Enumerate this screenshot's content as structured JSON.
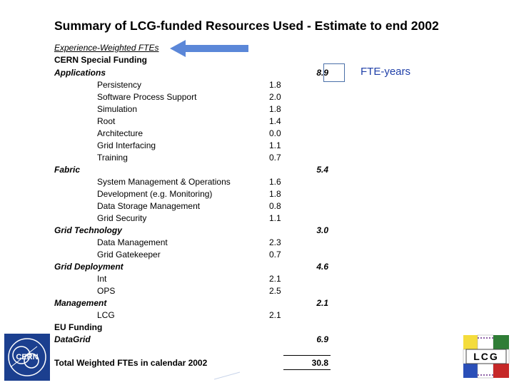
{
  "title": "Summary of LCG-funded Resources Used - Estimate to end 2002",
  "subtitle": "Experience-Weighted FTEs",
  "cern_funding": "CERN Special Funding",
  "eu_funding": "EU Funding",
  "unit_label": "FTE-years",
  "categories": [
    {
      "name": "Applications",
      "total": "8.9",
      "items": [
        {
          "label": "Persistency",
          "value": "1.8"
        },
        {
          "label": "Software Process Support",
          "value": "2.0"
        },
        {
          "label": "Simulation",
          "value": "1.8"
        },
        {
          "label": "Root",
          "value": "1.4"
        },
        {
          "label": "Architecture",
          "value": "0.0"
        },
        {
          "label": "Grid Interfacing",
          "value": "1.1"
        },
        {
          "label": "Training",
          "value": "0.7"
        }
      ]
    },
    {
      "name": "Fabric",
      "total": "5.4",
      "items": [
        {
          "label": "System Management & Operations",
          "value": "1.6"
        },
        {
          "label": "Development (e.g. Monitoring)",
          "value": "1.8"
        },
        {
          "label": "Data Storage Management",
          "value": "0.8"
        },
        {
          "label": "Grid Security",
          "value": "1.1"
        }
      ]
    },
    {
      "name": "Grid Technology",
      "total": "3.0",
      "items": [
        {
          "label": "Data Management",
          "value": "2.3"
        },
        {
          "label": "Grid Gatekeeper",
          "value": "0.7"
        }
      ]
    },
    {
      "name": "Grid Deployment",
      "total": "4.6",
      "items": [
        {
          "label": "Int",
          "value": "2.1"
        },
        {
          "label": "OPS",
          "value": "2.5"
        }
      ]
    },
    {
      "name": "Management",
      "total": "2.1",
      "items": [
        {
          "label": "LCG",
          "value": "2.1"
        }
      ]
    },
    {
      "name": "DataGrid",
      "total": "6.9",
      "items": []
    }
  ],
  "total": {
    "label": "Total Weighted FTEs in calendar 2002",
    "value": "30.8"
  },
  "logos": {
    "cern": "CERN",
    "lcg": "LCG"
  },
  "colors": {
    "arrow": "#5b87d8",
    "unit_label": "#1f3fa8",
    "cern_blue": "#1b3f8f"
  }
}
